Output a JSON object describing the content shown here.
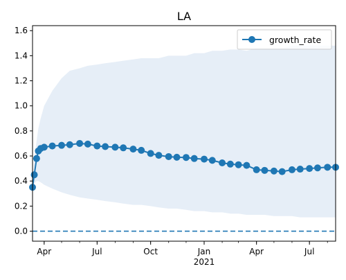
{
  "chart_data": {
    "type": "line",
    "title": "LA",
    "xlabel": "",
    "ylabel": "",
    "x_range": [
      "2020-03-12",
      "2021-08-15"
    ],
    "ylim": [
      -0.08,
      1.64
    ],
    "y_ticks": [
      0.0,
      0.2,
      0.4,
      0.6,
      0.8,
      1.0,
      1.2,
      1.4,
      1.6
    ],
    "y_tick_labels": [
      "0.0",
      "0.2",
      "0.4",
      "0.6",
      "0.8",
      "1.0",
      "1.2",
      "1.4",
      "1.6"
    ],
    "x_ticks": [
      {
        "date": "2020-04-01",
        "label": "Apr",
        "sublabel": ""
      },
      {
        "date": "2020-07-01",
        "label": "Jul",
        "sublabel": ""
      },
      {
        "date": "2020-10-01",
        "label": "Oct",
        "sublabel": ""
      },
      {
        "date": "2021-01-01",
        "label": "Jan",
        "sublabel": "2021"
      },
      {
        "date": "2021-04-01",
        "label": "Apr",
        "sublabel": ""
      },
      {
        "date": "2021-07-01",
        "label": "Jul",
        "sublabel": ""
      }
    ],
    "grid": false,
    "legend": {
      "placement": "top-right",
      "entries": [
        "growth_rate"
      ]
    },
    "reference_line": {
      "y": 0.0,
      "style": "dashed"
    },
    "colors": {
      "line": "#1f77b4",
      "band": "#e6eef7"
    },
    "series": [
      {
        "name": "growth_rate",
        "x": [
          "2020-03-12",
          "2020-03-15",
          "2020-03-19",
          "2020-03-22",
          "2020-03-26",
          "2020-04-01",
          "2020-04-15",
          "2020-05-01",
          "2020-05-15",
          "2020-06-01",
          "2020-06-15",
          "2020-07-01",
          "2020-07-15",
          "2020-08-01",
          "2020-08-15",
          "2020-09-01",
          "2020-09-15",
          "2020-10-01",
          "2020-10-15",
          "2020-11-01",
          "2020-11-15",
          "2020-12-01",
          "2020-12-15",
          "2021-01-01",
          "2021-01-15",
          "2021-02-01",
          "2021-02-15",
          "2021-03-01",
          "2021-03-15",
          "2021-04-01",
          "2021-04-15",
          "2021-05-01",
          "2021-05-15",
          "2021-06-01",
          "2021-06-15",
          "2021-07-01",
          "2021-07-15",
          "2021-08-01",
          "2021-08-15"
        ],
        "y": [
          0.35,
          0.45,
          0.58,
          0.64,
          0.66,
          0.67,
          0.68,
          0.685,
          0.69,
          0.7,
          0.695,
          0.68,
          0.675,
          0.67,
          0.665,
          0.655,
          0.645,
          0.62,
          0.605,
          0.595,
          0.59,
          0.588,
          0.58,
          0.575,
          0.565,
          0.545,
          0.535,
          0.53,
          0.525,
          0.49,
          0.485,
          0.48,
          0.475,
          0.49,
          0.495,
          0.5,
          0.505,
          0.51,
          0.51
        ]
      }
    ],
    "band": {
      "x": [
        "2020-03-12",
        "2020-03-15",
        "2020-03-19",
        "2020-03-22",
        "2020-03-26",
        "2020-04-01",
        "2020-04-15",
        "2020-05-01",
        "2020-05-15",
        "2020-06-01",
        "2020-06-15",
        "2020-07-01",
        "2020-07-15",
        "2020-08-01",
        "2020-08-15",
        "2020-09-01",
        "2020-09-15",
        "2020-10-01",
        "2020-10-15",
        "2020-11-01",
        "2020-11-15",
        "2020-12-01",
        "2020-12-15",
        "2021-01-01",
        "2021-01-15",
        "2021-02-01",
        "2021-02-15",
        "2021-03-01",
        "2021-03-15",
        "2021-04-01",
        "2021-04-15",
        "2021-05-01",
        "2021-05-15",
        "2021-06-01",
        "2021-06-15",
        "2021-07-01",
        "2021-07-15",
        "2021-08-01",
        "2021-08-15"
      ],
      "upper": [
        0.42,
        0.58,
        0.72,
        0.82,
        0.9,
        1.0,
        1.12,
        1.22,
        1.28,
        1.3,
        1.32,
        1.33,
        1.34,
        1.35,
        1.36,
        1.37,
        1.38,
        1.38,
        1.38,
        1.4,
        1.4,
        1.4,
        1.42,
        1.42,
        1.44,
        1.44,
        1.45,
        1.45,
        1.44,
        1.46,
        1.46,
        1.46,
        1.46,
        1.48,
        1.48,
        1.48,
        1.48,
        1.48,
        1.48
      ],
      "lower": [
        0.32,
        0.38,
        0.4,
        0.4,
        0.39,
        0.37,
        0.34,
        0.31,
        0.29,
        0.27,
        0.26,
        0.25,
        0.24,
        0.23,
        0.22,
        0.21,
        0.21,
        0.2,
        0.19,
        0.18,
        0.18,
        0.17,
        0.16,
        0.16,
        0.15,
        0.15,
        0.14,
        0.14,
        0.13,
        0.13,
        0.13,
        0.12,
        0.12,
        0.12,
        0.11,
        0.11,
        0.11,
        0.11,
        0.11
      ]
    }
  }
}
